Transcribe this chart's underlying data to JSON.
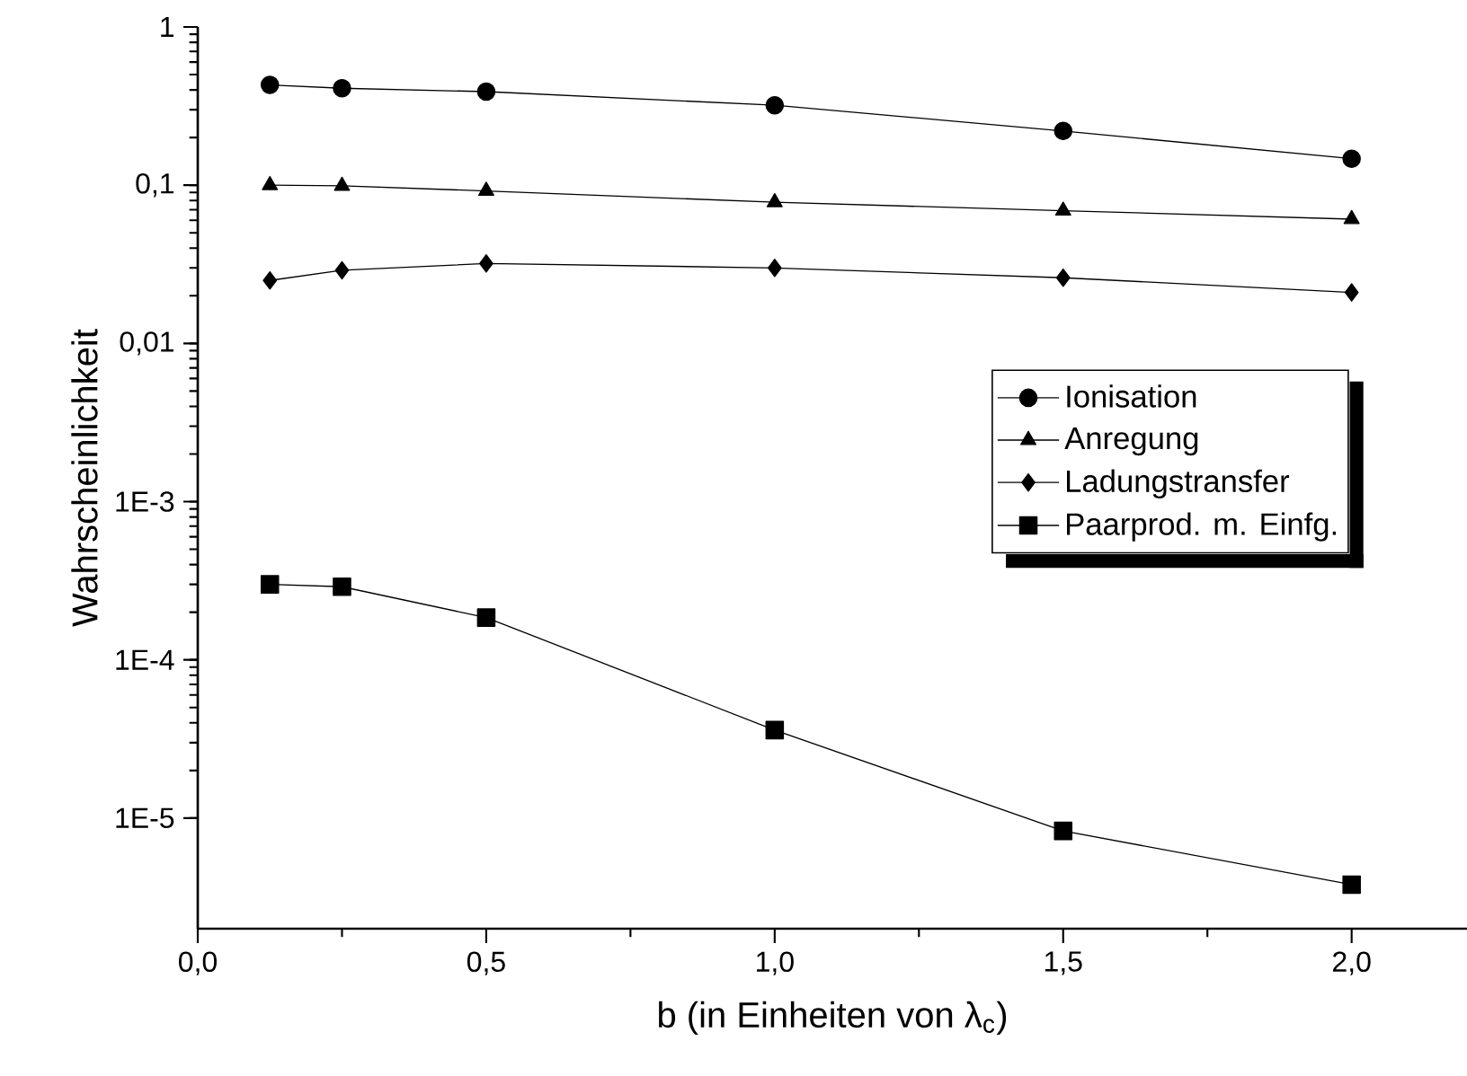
{
  "chart_data": {
    "type": "line",
    "xlabel": "b (in Einheiten von λ$_{c}$)",
    "ylabel": "Wahrscheinlichkeit",
    "x": [
      0.125,
      0.25,
      0.5,
      1.0,
      1.5,
      2.0
    ],
    "series": [
      {
        "name": "Ionisation",
        "color": "#000000",
        "marker": "circle",
        "values": [
          0.43,
          0.41,
          0.39,
          0.32,
          0.22,
          0.147
        ]
      },
      {
        "name": "Anregung",
        "color": "#000000",
        "marker": "triangle",
        "values": [
          0.1,
          0.099,
          0.092,
          0.078,
          0.069,
          0.061
        ]
      },
      {
        "name": "Ladungstransfer",
        "color": "#000000",
        "marker": "diamond",
        "values": [
          0.025,
          0.029,
          0.032,
          0.03,
          0.026,
          0.021
        ]
      },
      {
        "name": "Paarprod. m. Einfg.",
        "color": "#000000",
        "marker": "square",
        "values": [
          0.0003,
          0.00029,
          0.000185,
          3.6e-05,
          8.3e-06,
          3.8e-06
        ]
      }
    ],
    "log": "y",
    "xlim": [
      0,
      2.2
    ],
    "ylim": [
      2e-06,
      1
    ],
    "xticks": [
      {
        "value": 0,
        "label": "0,0"
      },
      {
        "value": 0.5,
        "label": "0,5"
      },
      {
        "value": 1,
        "label": "1,0"
      },
      {
        "value": 1.5,
        "label": "1,5"
      },
      {
        "value": 2,
        "label": "2,0"
      }
    ],
    "yticks": [
      {
        "value": 1e-05,
        "label": "1E-5"
      },
      {
        "value": 0.0001,
        "label": "1E-4"
      },
      {
        "value": 0.001,
        "label": "1E-3"
      },
      {
        "value": 0.01,
        "label": "0,01"
      },
      {
        "value": 0.1,
        "label": "0,1"
      },
      1
    ],
    "grid": false,
    "legend": "right",
    "line_style": "solid"
  }
}
